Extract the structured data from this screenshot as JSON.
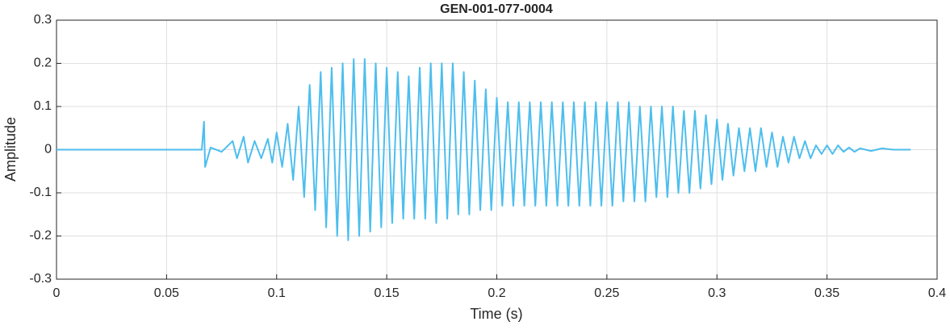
{
  "chart_data": {
    "type": "line",
    "title": "GEN-001-077-0004",
    "x_label": "Time (s)",
    "y_label": "Amplitude",
    "xlim": [
      0,
      0.4
    ],
    "ylim": [
      -0.3,
      0.3
    ],
    "xticks": [
      0,
      0.05,
      0.1,
      0.15,
      0.2,
      0.25,
      0.3,
      0.35,
      0.4
    ],
    "yticks": [
      -0.3,
      -0.2,
      -0.1,
      0,
      0.1,
      0.2,
      0.3
    ],
    "grid": true,
    "series": [
      {
        "color": "#4dbeee",
        "x": [
          0,
          0.066,
          0.067,
          0.0675,
          0.07,
          0.075,
          0.08,
          0.082,
          0.085,
          0.087,
          0.09,
          0.093,
          0.096,
          0.098,
          0.1,
          0.1025,
          0.105,
          0.1075,
          0.11,
          0.1125,
          0.115,
          0.1175,
          0.12,
          0.1225,
          0.125,
          0.1275,
          0.13,
          0.1325,
          0.135,
          0.1375,
          0.14,
          0.1425,
          0.145,
          0.1475,
          0.15,
          0.1525,
          0.155,
          0.1575,
          0.16,
          0.1625,
          0.165,
          0.1675,
          0.17,
          0.1725,
          0.175,
          0.1775,
          0.18,
          0.1825,
          0.185,
          0.1875,
          0.19,
          0.1925,
          0.195,
          0.1975,
          0.2,
          0.2025,
          0.205,
          0.2075,
          0.21,
          0.2125,
          0.215,
          0.2175,
          0.22,
          0.2225,
          0.225,
          0.2275,
          0.23,
          0.2325,
          0.235,
          0.2375,
          0.24,
          0.2425,
          0.245,
          0.2475,
          0.25,
          0.2525,
          0.255,
          0.2575,
          0.26,
          0.2625,
          0.265,
          0.2675,
          0.27,
          0.2725,
          0.275,
          0.2775,
          0.28,
          0.2825,
          0.285,
          0.2875,
          0.29,
          0.2925,
          0.295,
          0.2975,
          0.3,
          0.3025,
          0.305,
          0.3075,
          0.31,
          0.3125,
          0.315,
          0.3175,
          0.32,
          0.3225,
          0.325,
          0.3275,
          0.33,
          0.3325,
          0.335,
          0.3375,
          0.34,
          0.3425,
          0.345,
          0.3475,
          0.35,
          0.3525,
          0.355,
          0.3575,
          0.36,
          0.3625,
          0.365,
          0.37,
          0.375,
          0.38,
          0.388
        ],
        "values": [
          0,
          0,
          0.065,
          -0.04,
          0.005,
          -0.005,
          0.02,
          -0.02,
          0.03,
          -0.03,
          0.02,
          -0.02,
          0.025,
          -0.03,
          0.04,
          -0.04,
          0.06,
          -0.07,
          0.1,
          -0.11,
          0.15,
          -0.14,
          0.18,
          -0.18,
          0.19,
          -0.2,
          0.2,
          -0.21,
          0.21,
          -0.2,
          0.21,
          -0.19,
          0.2,
          -0.18,
          0.19,
          -0.17,
          0.18,
          -0.16,
          0.17,
          -0.16,
          0.19,
          -0.16,
          0.2,
          -0.17,
          0.2,
          -0.16,
          0.2,
          -0.15,
          0.18,
          -0.15,
          0.16,
          -0.14,
          0.14,
          -0.14,
          0.12,
          -0.13,
          0.11,
          -0.13,
          0.11,
          -0.13,
          0.11,
          -0.13,
          0.11,
          -0.13,
          0.11,
          -0.13,
          0.11,
          -0.13,
          0.11,
          -0.13,
          0.11,
          -0.13,
          0.11,
          -0.13,
          0.11,
          -0.13,
          0.11,
          -0.12,
          0.11,
          -0.12,
          0.1,
          -0.12,
          0.1,
          -0.11,
          0.1,
          -0.11,
          0.1,
          -0.1,
          0.09,
          -0.1,
          0.09,
          -0.09,
          0.08,
          -0.08,
          0.07,
          -0.07,
          0.06,
          -0.06,
          0.05,
          -0.05,
          0.05,
          -0.05,
          0.05,
          -0.04,
          0.04,
          -0.04,
          0.03,
          -0.03,
          0.03,
          -0.02,
          0.02,
          -0.02,
          0.01,
          -0.01,
          0.01,
          -0.01,
          0.01,
          -0.005,
          0.005,
          -0.005,
          0.003,
          -0.003,
          0.003,
          0,
          0
        ]
      }
    ]
  }
}
